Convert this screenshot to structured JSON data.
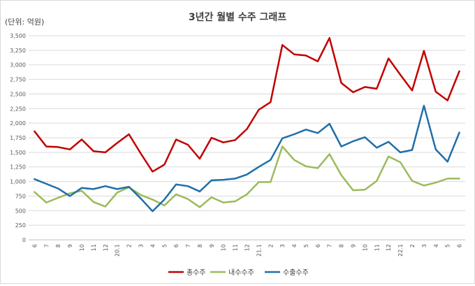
{
  "chart_data": {
    "type": "line",
    "title": "3년간 월별 수주 그래프",
    "unit_label": "(단위: 억원)",
    "categories": [
      "6",
      "7",
      "8",
      "9",
      "10",
      "11",
      "12",
      "20.1",
      "2",
      "3",
      "4",
      "5",
      "6",
      "7",
      "8",
      "9",
      "10",
      "11",
      "12",
      "21.1",
      "2",
      "3",
      "4",
      "5",
      "6",
      "7",
      "8",
      "9",
      "10",
      "11",
      "12",
      "22.1",
      "2",
      "3",
      "4",
      "5",
      "6"
    ],
    "ylim": [
      0,
      3500
    ],
    "yticks": [
      "0",
      "250",
      "500",
      "750",
      "1,000",
      "1,250",
      "1,500",
      "1,750",
      "2,000",
      "2,250",
      "2,500",
      "2,750",
      "3,000",
      "3,250",
      "3,500"
    ],
    "ytick_values": [
      0,
      250,
      500,
      750,
      1000,
      1250,
      1500,
      1750,
      2000,
      2250,
      2500,
      2750,
      3000,
      3250,
      3500
    ],
    "grid": true,
    "legend_position": "bottom",
    "series": [
      {
        "name": "총수주",
        "color": "#c00000",
        "values": [
          1860,
          1600,
          1590,
          1550,
          1720,
          1520,
          1500,
          1660,
          1810,
          1480,
          1170,
          1290,
          1720,
          1630,
          1390,
          1750,
          1670,
          1710,
          1900,
          2230,
          2360,
          3340,
          3180,
          3160,
          3060,
          3460,
          2690,
          2530,
          2620,
          2590,
          3110,
          2830,
          2560,
          3240,
          2540,
          2390,
          2890
        ]
      },
      {
        "name": "내수수주",
        "color": "#9bbb59",
        "values": [
          820,
          640,
          720,
          800,
          840,
          650,
          570,
          810,
          900,
          770,
          690,
          590,
          780,
          700,
          560,
          730,
          640,
          660,
          780,
          990,
          990,
          1600,
          1370,
          1260,
          1230,
          1470,
          1110,
          850,
          860,
          1010,
          1430,
          1330,
          1010,
          930,
          980,
          1050,
          1050
        ]
      },
      {
        "name": "수출수주",
        "color": "#1f6fa8",
        "values": [
          1040,
          960,
          880,
          750,
          890,
          870,
          920,
          870,
          910,
          710,
          490,
          690,
          950,
          920,
          830,
          1020,
          1030,
          1050,
          1120,
          1250,
          1370,
          1740,
          1810,
          1890,
          1830,
          1990,
          1600,
          1690,
          1760,
          1580,
          1680,
          1500,
          1540,
          2300,
          1550,
          1340,
          1840
        ]
      }
    ]
  }
}
